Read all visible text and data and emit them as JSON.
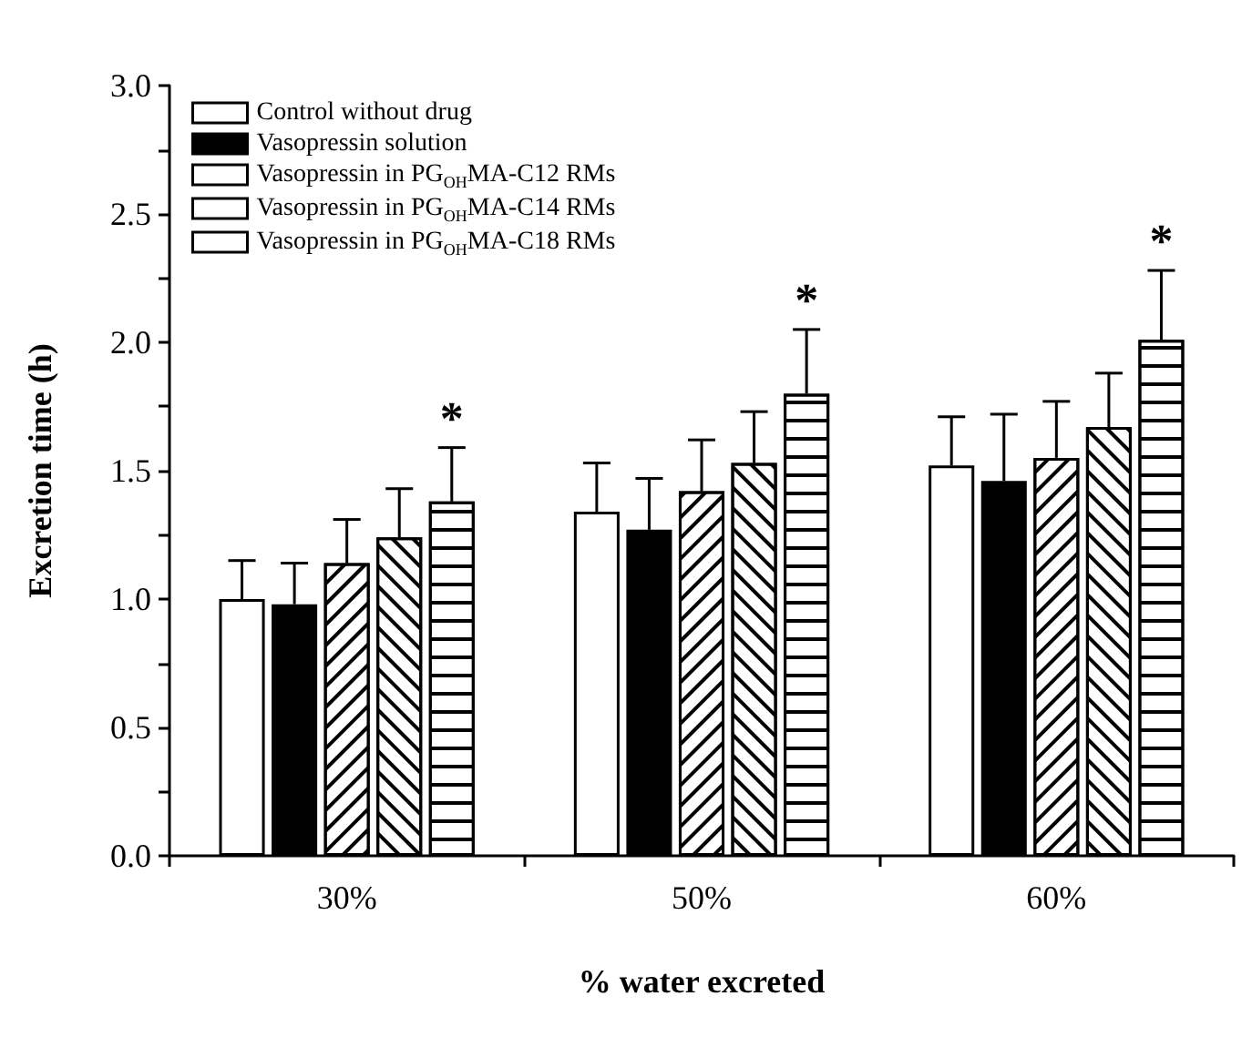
{
  "chart_data": {
    "type": "bar",
    "xlabel": "% water excreted",
    "ylabel": "Excretion time (h)",
    "categories": [
      "30%",
      "50%",
      "60%"
    ],
    "series": [
      {
        "name": "Control without drug",
        "color": "#ffffff",
        "values": [
          1.0,
          1.34,
          1.52
        ],
        "errors": [
          [
            1.0,
            1.15
          ],
          [
            1.34,
            1.53
          ],
          [
            1.52,
            1.71
          ]
        ]
      },
      {
        "name": "Vasopressin solution",
        "color": "#000000",
        "values": [
          0.98,
          1.27,
          1.46
        ],
        "errors": [
          [
            0.98,
            1.14
          ],
          [
            1.27,
            1.47
          ],
          [
            1.46,
            1.72
          ]
        ]
      },
      {
        "name": "Vasopressin in PG$_{OH}$MA-C12 RMs",
        "color": "#ffffff",
        "values": [
          1.14,
          1.42,
          1.55
        ],
        "errors": [
          [
            1.14,
            1.31
          ],
          [
            1.42,
            1.62
          ],
          [
            1.55,
            1.77
          ]
        ]
      },
      {
        "name": "Vasopressin in PG$_{OH}$MA-C14 RMs",
        "color": "#ffffff",
        "values": [
          1.24,
          1.53,
          1.67
        ],
        "errors": [
          [
            1.24,
            1.43
          ],
          [
            1.53,
            1.73
          ],
          [
            1.67,
            1.88
          ]
        ]
      },
      {
        "name": "Vasopressin in PG$_{OH}$MA-C18 RMs",
        "color": "#ffffff",
        "values": [
          1.38,
          1.8,
          2.01
        ],
        "errors": [
          [
            1.38,
            1.59
          ],
          [
            1.8,
            2.05
          ],
          [
            2.01,
            2.28
          ]
        ]
      }
    ],
    "annotations": [
      "*",
      "*",
      "*"
    ],
    "ylim": [
      0,
      3
    ],
    "yticks": [
      {
        "value": 0,
        "label": "0.0"
      },
      {
        "value": 0.25,
        "label": null
      },
      {
        "value": 0.5,
        "label": "0.5"
      },
      {
        "value": 0.75,
        "label": null
      },
      {
        "value": 1,
        "label": "1.0"
      },
      {
        "value": 1.25,
        "label": null
      },
      {
        "value": 1.5,
        "label": "1.5"
      },
      {
        "value": 1.75,
        "label": null
      },
      {
        "value": 2,
        "label": "2.0"
      },
      {
        "value": 2.25,
        "label": null
      },
      {
        "value": 2.5,
        "label": "2.5"
      },
      {
        "value": 2.75,
        "label": null
      },
      {
        "value": 3,
        "label": "3.0"
      }
    ],
    "grid": false,
    "legend": "top left"
  }
}
